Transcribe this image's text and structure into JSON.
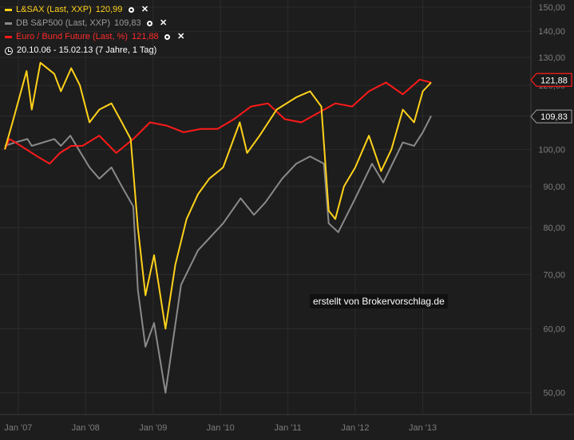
{
  "legend": {
    "items": [
      {
        "label": "L&SAX (Last, XXP)",
        "value": "120,99",
        "color": "#ffd11a"
      },
      {
        "label": "DB S&P500 (Last, XXP)",
        "value": "109,83",
        "color": "#8a8a8a"
      },
      {
        "label": "Euro / Bund Future (Last, %)",
        "value": "121,88",
        "color": "#ff1a1a"
      }
    ],
    "range": "20.10.06 - 15.02.13 (7 Jahre, 1 Tag)",
    "icon_toggle": "circle-icon",
    "icon_remove": "close-icon"
  },
  "watermark": "erstellt von Brokervorschlag.de",
  "colors": {
    "background": "#1d1d1d",
    "grid": "#2c2c2c",
    "axis_text": "#7d7d7d"
  },
  "chart_data": {
    "type": "line",
    "y_scale": "log",
    "ylim": [
      47,
      152
    ],
    "xlim": [
      "2006-10-20",
      "2013-02-15"
    ],
    "y_ticks": [
      "50,00",
      "60,00",
      "70,00",
      "80,00",
      "90,00",
      "100,00",
      "110,00",
      "120,00",
      "130,00",
      "140,00",
      "150,00"
    ],
    "x_ticks": [
      "Jan '07",
      "Jan '08",
      "Jan '09",
      "Jan '10",
      "Jan '11",
      "Jan '12",
      "Jan '13"
    ],
    "last_value_labels": [
      {
        "text": "121,88",
        "value": 121.88,
        "color": "#ff1a1a"
      },
      {
        "text": "109,83",
        "value": 109.83,
        "color": "#8a8a8a"
      }
    ],
    "series": [
      {
        "name": "L&SAX (Last, XXP)",
        "color": "#ffd11a",
        "x": [
          "2006-10-20",
          "2006-12-01",
          "2007-02-15",
          "2007-03-15",
          "2007-05-01",
          "2007-07-15",
          "2007-08-20",
          "2007-10-15",
          "2007-12-01",
          "2008-01-22",
          "2008-03-15",
          "2008-05-20",
          "2008-07-15",
          "2008-09-01",
          "2008-10-10",
          "2008-11-20",
          "2009-01-06",
          "2009-03-09",
          "2009-05-01",
          "2009-07-01",
          "2009-09-01",
          "2009-11-01",
          "2010-01-15",
          "2010-04-15",
          "2010-05-25",
          "2010-08-01",
          "2010-11-01",
          "2011-02-15",
          "2011-05-01",
          "2011-07-01",
          "2011-08-10",
          "2011-09-15",
          "2011-11-01",
          "2012-01-01",
          "2012-03-15",
          "2012-05-20",
          "2012-07-15",
          "2012-09-15",
          "2012-11-15",
          "2013-01-01",
          "2013-02-15"
        ],
        "values": [
          100,
          108,
          125,
          112,
          128,
          124,
          118,
          126,
          120,
          108,
          112,
          114,
          108,
          103,
          80,
          66,
          74,
          60,
          72,
          82,
          88,
          92,
          95,
          108,
          99,
          104,
          112,
          116,
          118,
          113,
          84,
          82,
          90,
          95,
          104,
          94,
          100,
          112,
          108,
          118,
          121
        ]
      },
      {
        "name": "DB S&P500 (Last, XXP)",
        "color": "#8a8a8a",
        "x": [
          "2006-10-20",
          "2006-12-15",
          "2007-02-20",
          "2007-03-15",
          "2007-07-15",
          "2007-08-20",
          "2007-10-10",
          "2008-01-22",
          "2008-03-15",
          "2008-05-20",
          "2008-07-15",
          "2008-09-15",
          "2008-10-10",
          "2008-11-20",
          "2009-01-06",
          "2009-03-09",
          "2009-06-01",
          "2009-09-01",
          "2010-01-15",
          "2010-04-20",
          "2010-07-01",
          "2010-09-01",
          "2010-12-01",
          "2011-02-15",
          "2011-05-01",
          "2011-07-15",
          "2011-08-10",
          "2011-10-01",
          "2012-01-01",
          "2012-04-01",
          "2012-06-01",
          "2012-09-15",
          "2012-11-15",
          "2013-01-01",
          "2013-02-15"
        ],
        "values": [
          101,
          102,
          103,
          101,
          103,
          101,
          104,
          95,
          92,
          95,
          90,
          85,
          67,
          57,
          61,
          50,
          68,
          75,
          81,
          87,
          83,
          86,
          92,
          96,
          98,
          96,
          81,
          79,
          87,
          96,
          91,
          102,
          101,
          105,
          110
        ]
      },
      {
        "name": "Euro / Bund Future (Last, %)",
        "color": "#ff1a1a",
        "x": [
          "2006-10-20",
          "2006-11-15",
          "2007-01-15",
          "2007-04-15",
          "2007-06-20",
          "2007-08-15",
          "2007-10-15",
          "2007-12-15",
          "2008-03-15",
          "2008-06-15",
          "2008-09-15",
          "2008-12-15",
          "2009-03-15",
          "2009-06-15",
          "2009-09-15",
          "2009-12-15",
          "2010-03-15",
          "2010-06-15",
          "2010-09-15",
          "2010-12-15",
          "2011-03-15",
          "2011-06-15",
          "2011-09-15",
          "2011-12-15",
          "2012-03-15",
          "2012-06-15",
          "2012-09-15",
          "2012-12-15",
          "2013-02-15"
        ],
        "values": [
          100,
          103,
          101,
          98,
          96,
          99,
          101,
          101,
          104,
          99,
          103,
          108,
          107,
          105,
          106,
          106,
          109,
          113,
          114,
          109,
          108,
          111,
          114,
          113,
          118,
          121,
          117,
          122,
          121
        ]
      }
    ]
  }
}
